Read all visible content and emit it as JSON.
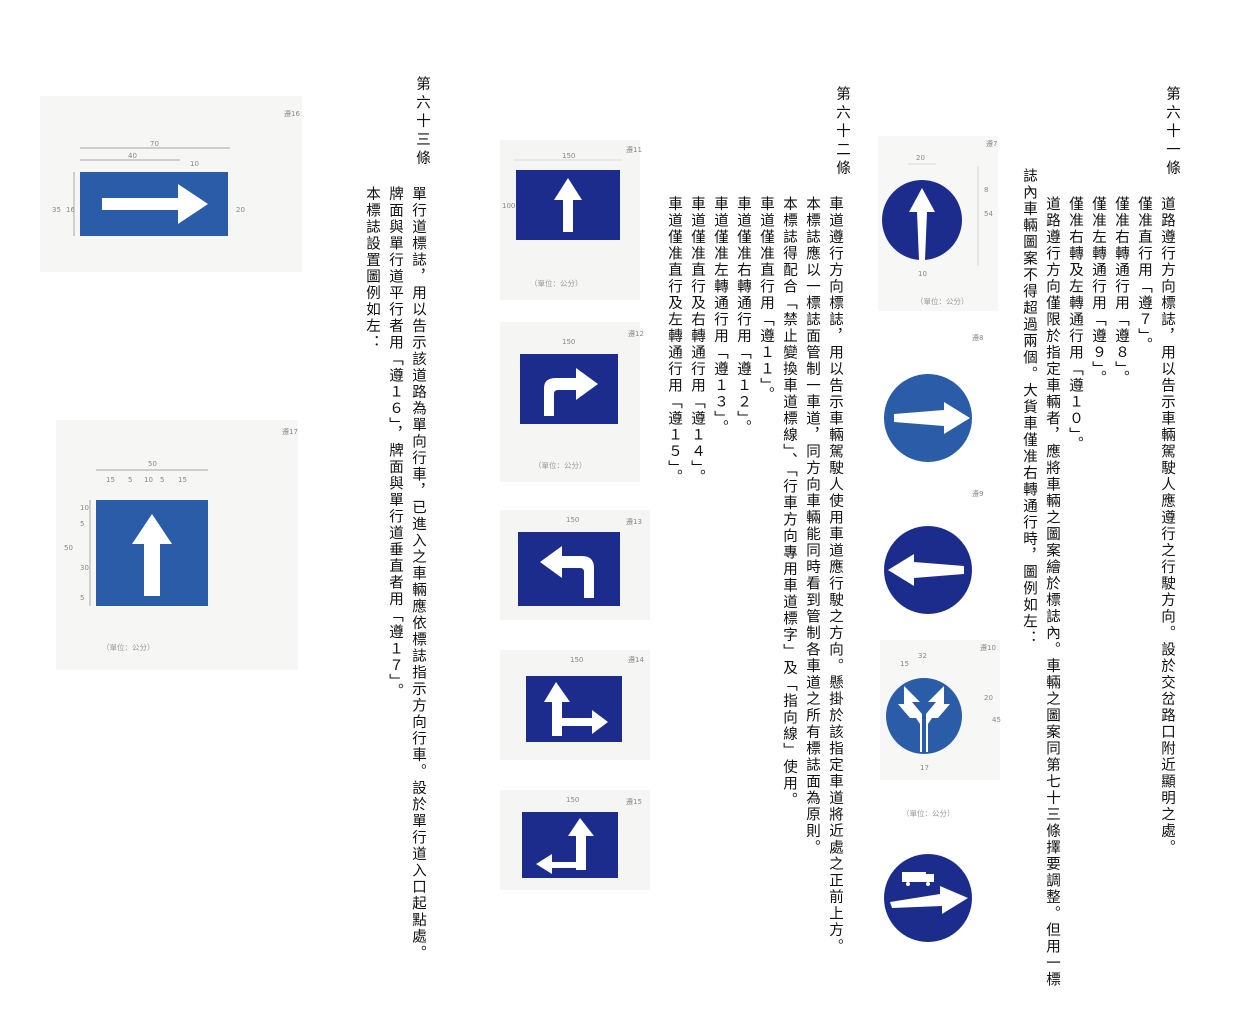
{
  "articles": {
    "a61": {
      "title": "第六十一條",
      "lines": [
        "道路遵行方向標誌，用以告示車輛駕駛人應遵行之行駛方向。設於交岔路口附近顯明之處。",
        "僅准直行用「遵７」。",
        "僅准右轉通行用「遵８」。",
        "僅准左轉通行用「遵９」。",
        "僅准右轉及左轉通行用「遵１０」。",
        "道路遵行方向僅限於指定車輛者，應將車輛之圖案繪於標誌內。車輛之圖案同第七十三條擇要調整。但用一標",
        "誌內車輛圖案不得超過兩個。大貨車僅准右轉通行時，圖例如左："
      ]
    },
    "a62": {
      "title": "第六十二條",
      "lines": [
        "車道遵行方向標誌，用以告示車輛駕駛人使用車道應行駛之方向。懸掛於該指定車道將近處之正前上方。",
        "本標誌應以一標誌面管制一車道，同方向車輛能同時看到管制各車道之所有標誌面為原則。",
        "本標誌得配合「禁止變換車道標線」、「行車方向專用車道標字」及「指向線」使用。",
        "車道僅准直行用「遵１１」。",
        "車道僅准右轉通行用「遵１２」。",
        "車道僅准左轉通行用「遵１３」。",
        "車道僅准直行及右轉通行用「遵１４」。",
        "車道僅准直行及左轉通行用「遵１５」。"
      ]
    },
    "a63": {
      "title": "第六十三條",
      "lines": [
        "單行道標誌，用以告示該道路為單向行車，已進入之車輛應依標誌指示方向行車。設於單行道入口起點處。",
        "牌面與單行道平行者用「遵１６」，牌面與單行道垂直者用「遵１７」。",
        "本標誌設置圖例如左："
      ]
    }
  },
  "signs": {
    "z7": {
      "code": "遵7"
    },
    "z8": {
      "code": "遵8"
    },
    "z9": {
      "code": "遵9"
    },
    "z10": {
      "code": "遵10"
    },
    "z11": {
      "code": "遵11"
    },
    "z12": {
      "code": "遵12"
    },
    "z13": {
      "code": "遵13"
    },
    "z14": {
      "code": "遵14"
    },
    "z15": {
      "code": "遵15"
    },
    "z16": {
      "code": "遵16"
    },
    "z17": {
      "code": "遵17"
    }
  },
  "unit_label": "（單位：公分）",
  "dims": {
    "z7": [
      "20",
      "8",
      "10",
      "54"
    ],
    "z10": [
      "32",
      "15",
      "20",
      "45",
      "17"
    ],
    "z11_w": "150",
    "z11_h": "100",
    "z12_w": "150",
    "z13_w": "150",
    "z14_w": "150",
    "z15_w": "150",
    "z16": [
      "70",
      "40",
      "10",
      "35",
      "16",
      "20"
    ],
    "z17": [
      "50",
      "15",
      "5",
      "10",
      "5",
      "15",
      "10",
      "5",
      "30",
      "5",
      "50"
    ]
  },
  "colors": {
    "sign_blue": "#1c2c8c",
    "sign_blue_light": "#2a5ca8",
    "arrow_white": "#ffffff"
  }
}
